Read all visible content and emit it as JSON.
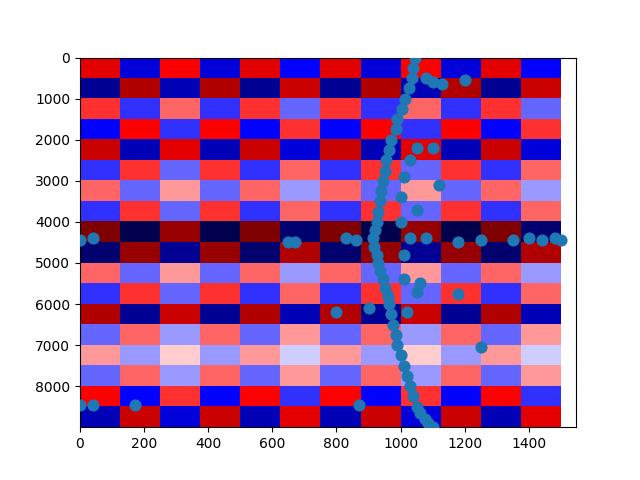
{
  "chart_data": {
    "type": "scatter_on_heatmap",
    "color": "#1f77b4",
    "x": [
      1045,
      1040,
      1035,
      1025,
      1015,
      1005,
      990,
      985,
      970,
      965,
      955,
      950,
      945,
      940,
      935,
      930,
      925,
      920,
      915,
      918,
      925,
      930,
      935,
      945,
      950,
      960,
      965,
      970,
      975,
      985,
      990,
      1000,
      1010,
      1020,
      1030,
      1040,
      1050,
      1060,
      1075,
      1085,
      1100,
      1080,
      1100,
      1130,
      1200,
      1100,
      1050,
      1030,
      1010,
      1120,
      1000,
      1050,
      1000,
      1030,
      1080,
      1180,
      1250,
      1350,
      1400,
      1440,
      1480,
      1500,
      0,
      40,
      650,
      670,
      830,
      860,
      800,
      900,
      1010,
      1050,
      1180,
      1020,
      1250,
      0,
      40,
      170,
      870,
      1010,
      1060
    ],
    "y": [
      0,
      250,
      500,
      750,
      1000,
      1250,
      1500,
      1750,
      2000,
      2250,
      2500,
      2750,
      3000,
      3250,
      3500,
      3750,
      4000,
      4200,
      4400,
      4600,
      4800,
      5000,
      5200,
      5400,
      5600,
      5800,
      6000,
      6250,
      6500,
      6750,
      7000,
      7250,
      7500,
      7750,
      8000,
      8250,
      8500,
      8650,
      8800,
      8900,
      9000,
      500,
      600,
      650,
      550,
      2200,
      2200,
      2500,
      2900,
      3100,
      3400,
      3700,
      4000,
      4400,
      4400,
      4500,
      4450,
      4450,
      4400,
      4450,
      4400,
      4450,
      4450,
      4400,
      4500,
      4500,
      4400,
      4450,
      6200,
      6100,
      5400,
      5700,
      5750,
      6200,
      7050,
      8450,
      8450,
      8450,
      8450,
      4800,
      5500
    ],
    "cells_extent": [
      0,
      1500,
      9000,
      0
    ],
    "cells_range": [
      -1,
      1
    ],
    "cells": [
      [
        0.6,
        -0.6,
        0.5,
        -0.6,
        0.6,
        -0.5,
        0.6,
        -0.6,
        0.5,
        -0.6,
        0.6,
        -0.5
      ],
      [
        -0.8,
        0.8,
        -0.7,
        0.8,
        -0.8,
        0.7,
        -0.8,
        0.8,
        -0.7,
        0.8,
        -0.8,
        0.7
      ],
      [
        0.4,
        -0.4,
        0.3,
        -0.4,
        0.4,
        -0.3,
        0.4,
        -0.4,
        0.3,
        -0.4,
        0.4,
        -0.3
      ],
      [
        -0.5,
        0.5,
        -0.4,
        0.5,
        -0.5,
        0.4,
        -0.5,
        0.5,
        -0.4,
        0.5,
        -0.5,
        0.4
      ],
      [
        0.7,
        -0.7,
        0.6,
        -0.7,
        0.7,
        -0.6,
        0.7,
        -0.7,
        0.6,
        -0.7,
        0.7,
        -0.6
      ],
      [
        -0.4,
        0.4,
        -0.3,
        0.4,
        -0.4,
        0.3,
        -0.4,
        0.4,
        -0.3,
        0.4,
        -0.4,
        0.3
      ],
      [
        0.3,
        -0.3,
        0.2,
        -0.3,
        0.3,
        -0.2,
        0.3,
        -0.3,
        0.2,
        -0.3,
        0.3,
        -0.2
      ],
      [
        -0.4,
        0.4,
        -0.3,
        0.4,
        -0.4,
        0.3,
        -0.4,
        0.4,
        -0.3,
        0.4,
        -0.4,
        0.3
      ],
      [
        1.0,
        -1.0,
        0.9,
        -1.0,
        1.0,
        -0.9,
        1.0,
        -1.0,
        0.9,
        -1.0,
        1.0,
        -0.9
      ],
      [
        -0.9,
        0.9,
        -0.8,
        0.9,
        -0.9,
        0.8,
        -0.9,
        0.9,
        -0.8,
        0.9,
        -0.9,
        0.8
      ],
      [
        0.3,
        -0.3,
        0.2,
        -0.3,
        0.3,
        -0.2,
        0.3,
        -0.3,
        0.2,
        -0.3,
        0.3,
        -0.2
      ],
      [
        -0.4,
        0.4,
        -0.3,
        0.4,
        -0.4,
        0.3,
        -0.4,
        0.4,
        -0.3,
        0.4,
        -0.4,
        0.3
      ],
      [
        0.8,
        -0.8,
        0.7,
        -0.8,
        0.8,
        -0.7,
        0.8,
        -0.8,
        0.7,
        -0.8,
        0.8,
        -0.7
      ],
      [
        -0.3,
        0.3,
        -0.2,
        0.3,
        -0.3,
        0.2,
        -0.3,
        0.3,
        -0.2,
        0.3,
        -0.3,
        0.2
      ],
      [
        0.2,
        -0.2,
        0.1,
        -0.2,
        0.2,
        -0.1,
        0.2,
        -0.2,
        0.1,
        -0.2,
        0.2,
        -0.1
      ],
      [
        -0.3,
        0.3,
        -0.2,
        0.3,
        -0.3,
        0.2,
        -0.3,
        0.3,
        -0.2,
        0.3,
        -0.3,
        0.2
      ],
      [
        0.5,
        -0.5,
        0.4,
        -0.5,
        0.5,
        -0.4,
        0.5,
        -0.5,
        0.4,
        -0.5,
        0.5,
        -0.4
      ],
      [
        -0.7,
        0.7,
        -0.6,
        0.7,
        -0.7,
        0.6,
        -0.7,
        0.7,
        -0.6,
        0.7,
        -0.7,
        0.6
      ]
    ],
    "xlim": [
      0,
      1547
    ],
    "ylim": [
      9000,
      0
    ],
    "xticks": [
      0,
      200,
      400,
      600,
      800,
      1000,
      1200,
      1400
    ],
    "yticks": [
      0,
      1000,
      2000,
      3000,
      4000,
      5000,
      6000,
      7000,
      8000
    ],
    "grid": false
  }
}
